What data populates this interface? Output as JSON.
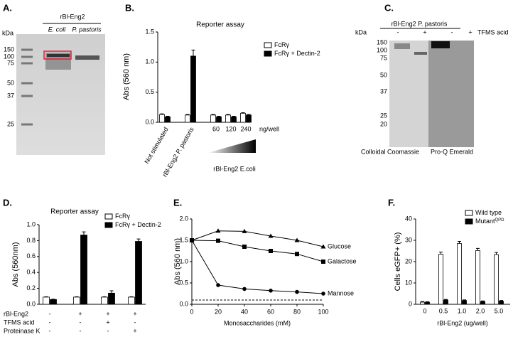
{
  "gels": [
    {
      "panel": "A.",
      "header": "rBl-Eng2",
      "lanes": [
        "E. coli",
        "P. pastoris"
      ],
      "unit": "kDa",
      "markers": [
        150,
        100,
        75,
        50,
        37,
        25
      ]
    },
    {
      "panel": "C.",
      "header": "rBl-Eng2 P. pastoris",
      "treatment": "TFMS acid",
      "signs": [
        "-",
        "+",
        "-",
        "+"
      ],
      "unit": "kDa",
      "markers": [
        150,
        100,
        75,
        50,
        37,
        25,
        20
      ],
      "stains": [
        "Colloidal Coomassie",
        "Pro-Q Emerald"
      ]
    }
  ],
  "chart_data": [
    {
      "type": "bar",
      "panel": "B.",
      "title": "Reporter assay",
      "y_label": "Abs (560 nm)",
      "categories": [
        "Not stimulated",
        "rBl-Eng2 P. pastoris",
        "60",
        "120",
        "240"
      ],
      "x_unit": "ng/well",
      "group_label": "rBl-Eng2 E.coli",
      "series": [
        {
          "name": "FcRγ",
          "color": "#ffffff",
          "values": [
            0.13,
            0.12,
            0.12,
            0.12,
            0.15
          ],
          "errors": [
            0.01,
            0.01,
            0.01,
            0.01,
            0.01
          ]
        },
        {
          "name": "FcRγ + Dectin-2",
          "color": "#000000",
          "values": [
            0.09,
            1.1,
            0.09,
            0.09,
            0.12
          ],
          "errors": [
            0.01,
            0.1,
            0.01,
            0.01,
            0.01
          ]
        }
      ],
      "ylim": [
        0,
        1.5
      ],
      "yticks": [
        {
          "value": 0,
          "label": "0.0"
        },
        {
          "value": 0.5,
          "label": "0.5"
        },
        {
          "value": 1,
          "label": "1.0"
        },
        {
          "value": 1.5,
          "label": "1.5"
        }
      ]
    },
    {
      "type": "bar",
      "panel": "D.",
      "title": "Reporter assay",
      "y_label": "Abs (560nm)",
      "categories": [
        null,
        null,
        null,
        null
      ],
      "series": [
        {
          "name": "FcRγ",
          "color": "#ffffff",
          "values": [
            0.09,
            0.09,
            0.09,
            0.09
          ],
          "errors": [
            0.005,
            0.005,
            0.005,
            0.005
          ]
        },
        {
          "name": "FcRγ + Dectin-2",
          "color": "#000000",
          "values": [
            0.06,
            0.87,
            0.14,
            0.79
          ],
          "errors": [
            0.005,
            0.04,
            0.03,
            0.03
          ]
        }
      ],
      "table": {
        "rows": [
          {
            "label": "rBl-Eng2",
            "cells": [
              "-",
              "+",
              "+",
              "+"
            ]
          },
          {
            "label": "TFMS acid",
            "cells": [
              "-",
              "-",
              "+",
              "-"
            ]
          },
          {
            "label": "Proteinase K",
            "cells": [
              "-",
              "-",
              "-",
              "+"
            ]
          }
        ]
      },
      "ylim": [
        0,
        1
      ],
      "yticks": [
        {
          "value": 0,
          "label": "0.0"
        },
        0.2,
        0.4,
        0.6,
        0.8,
        {
          "value": 1,
          "label": "1.0"
        }
      ]
    },
    {
      "type": "line",
      "panel": "E.",
      "y_label": "Abs (560 nm)",
      "x_label": "Monosaccharides (mM)",
      "x": [
        0,
        20,
        40,
        60,
        80,
        100
      ],
      "series": [
        {
          "name": "Glucose",
          "color": "#000000",
          "marker": "triangle",
          "values": [
            1.5,
            1.72,
            1.71,
            1.6,
            1.5,
            1.35
          ]
        },
        {
          "name": "Galactose",
          "color": "#000000",
          "marker": "square",
          "values": [
            1.5,
            1.49,
            1.35,
            1.25,
            1.18,
            1.0
          ]
        },
        {
          "name": "Mannose",
          "color": "#000000",
          "marker": "circle",
          "values": [
            1.5,
            0.45,
            0.36,
            0.32,
            0.29,
            0.25
          ]
        }
      ],
      "baseline": 0.1,
      "xlim": [
        0,
        100
      ],
      "xticks": [
        0,
        20,
        40,
        60,
        80,
        100
      ],
      "ylim": [
        0,
        2
      ],
      "yticks": [
        {
          "value": 0,
          "label": "0.0"
        },
        0.5,
        {
          "value": 1,
          "label": "1.0"
        },
        1.5,
        {
          "value": 2,
          "label": "2.0"
        }
      ]
    },
    {
      "type": "bar",
      "panel": "F.",
      "y_label": "Cells eGFP+ (%)",
      "x_label": "rBl-Eng2 (ug/well)",
      "categories": [
        "0",
        "0.5",
        "1.0",
        "2.0",
        "5.0"
      ],
      "series": [
        {
          "name": "Wild type",
          "color": "#ffffff",
          "values": [
            1,
            23.5,
            28.5,
            25.2,
            23.3
          ],
          "errors": [
            0.3,
            1,
            1,
            1,
            1
          ]
        },
        {
          "name": "Mutant",
          "name_sup": "QPD",
          "color": "#000000",
          "values": [
            1,
            2,
            1.8,
            1.3,
            1.5
          ],
          "errors": [
            0.2,
            0.3,
            0.3,
            0.3,
            0.3
          ]
        }
      ],
      "ylim": [
        0,
        40
      ],
      "yticks": [
        0,
        10,
        20,
        30,
        40
      ]
    }
  ]
}
